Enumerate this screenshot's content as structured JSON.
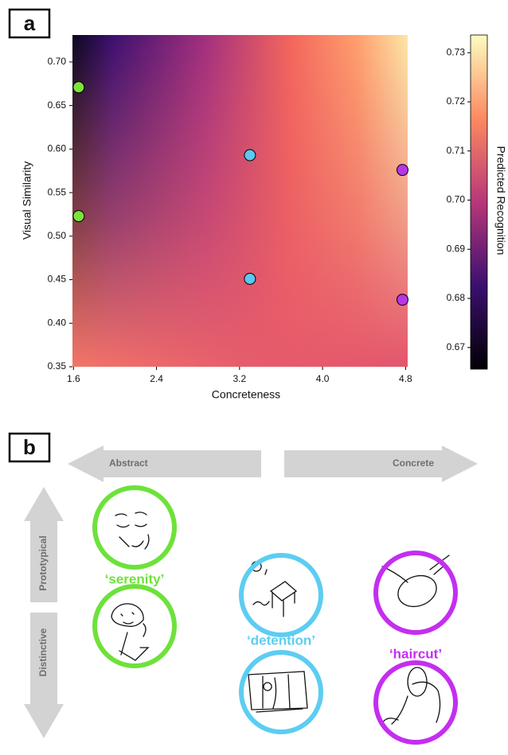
{
  "panel_labels": [
    "a",
    "b"
  ],
  "chart_data": {
    "type": "scatter",
    "xlabel": "Concreteness",
    "ylabel": "Visual Similarity",
    "xlim": [
      1.59,
      4.82
    ],
    "ylim": [
      0.35,
      0.731
    ],
    "xticks": [
      1.6,
      2.4,
      3.2,
      {
        "value": 4,
        "label": "4.0"
      },
      4.8
    ],
    "yticks": [
      0.35,
      {
        "value": 0.4,
        "label": "0.40"
      },
      0.45,
      {
        "value": 0.5,
        "label": "0.50"
      },
      0.55,
      {
        "value": 0.6,
        "label": "0.60"
      },
      0.65,
      {
        "value": 0.7,
        "label": "0.70"
      }
    ],
    "series": [
      {
        "color": "#7be33a",
        "x": [
          1.65,
          1.65
        ],
        "values": [
          0.671,
          0.523
        ]
      },
      {
        "color": "#5cc8ef",
        "x": [
          3.3,
          3.3
        ],
        "values": [
          0.593,
          0.451
        ]
      },
      {
        "color": "#b537e8",
        "x": [
          4.77,
          4.77
        ],
        "values": [
          0.576,
          0.427
        ]
      }
    ],
    "colorbar": {
      "label": "Predicted Recognition",
      "lim": [
        0.6656,
        0.7336
      ],
      "ticks": [
        0.67,
        0.68,
        0.69,
        {
          "value": 0.7,
          "label": "0.70"
        },
        0.71,
        0.72,
        0.73
      ]
    }
  },
  "diagram": {
    "left": "Abstract",
    "right": "Concrete",
    "up": "Prototypical",
    "down": "Distinctive",
    "words": [
      {
        "label": "‘serenity’",
        "color": "#6de23b"
      },
      {
        "label": "‘detention’",
        "color": "#5ccdf2"
      },
      {
        "label": "‘haircut’",
        "color": "#c42ef0"
      }
    ]
  }
}
